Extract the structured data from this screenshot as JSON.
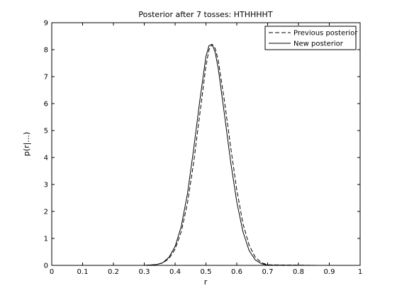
{
  "chart_data": {
    "type": "line",
    "title": "Posterior after 7 tosses: HTHHHHT",
    "xlabel": "r",
    "ylabel": "p(r|...)",
    "xlim": [
      0,
      1
    ],
    "ylim": [
      0,
      9
    ],
    "xticks": [
      "0",
      "0.1",
      "0.2",
      "0.3",
      "0.4",
      "0.5",
      "0.6",
      "0.7",
      "0.8",
      "0.9",
      "1"
    ],
    "yticks": [
      "0",
      "1",
      "2",
      "3",
      "4",
      "5",
      "6",
      "7",
      "8",
      "9"
    ],
    "grid": false,
    "legend_position": "top-right",
    "series": [
      {
        "name": "Previous posterior",
        "style": "dashed",
        "color": "#000000",
        "x": [
          0.16,
          0.3,
          0.34,
          0.36,
          0.38,
          0.4,
          0.42,
          0.44,
          0.46,
          0.48,
          0.5,
          0.51,
          0.52,
          0.53,
          0.54,
          0.56,
          0.58,
          0.6,
          0.62,
          0.64,
          0.66,
          0.68,
          0.7,
          0.86
        ],
        "y": [
          0,
          0,
          0.03,
          0.09,
          0.25,
          0.6,
          1.25,
          2.3,
          3.8,
          5.6,
          7.4,
          8.0,
          8.2,
          8.05,
          7.6,
          6.1,
          4.4,
          2.8,
          1.55,
          0.75,
          0.3,
          0.1,
          0.02,
          0
        ]
      },
      {
        "name": "New posterior",
        "style": "solid",
        "color": "#000000",
        "x": [
          0.16,
          0.3,
          0.34,
          0.36,
          0.38,
          0.4,
          0.42,
          0.44,
          0.46,
          0.48,
          0.5,
          0.51,
          0.52,
          0.53,
          0.54,
          0.56,
          0.58,
          0.6,
          0.62,
          0.64,
          0.66,
          0.68,
          0.7,
          0.86
        ],
        "y": [
          0,
          0,
          0.03,
          0.1,
          0.3,
          0.7,
          1.45,
          2.65,
          4.3,
          6.1,
          7.75,
          8.15,
          8.2,
          7.9,
          7.3,
          5.6,
          3.85,
          2.35,
          1.25,
          0.55,
          0.2,
          0.06,
          0.01,
          0
        ]
      }
    ]
  }
}
